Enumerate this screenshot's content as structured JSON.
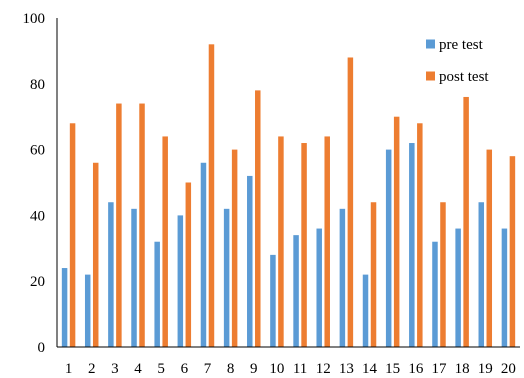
{
  "chart_data": {
    "type": "bar",
    "title": "",
    "xlabel": "",
    "ylabel": "",
    "ylim": [
      0,
      100
    ],
    "yticks": [
      0,
      20,
      40,
      60,
      80,
      100
    ],
    "grid": false,
    "legend_position": "top-right",
    "categories": [
      "1",
      "2",
      "3",
      "4",
      "5",
      "6",
      "7",
      "8",
      "9",
      "10",
      "11",
      "12",
      "13",
      "14",
      "15",
      "16",
      "17",
      "18",
      "19",
      "20"
    ],
    "series": [
      {
        "name": "pre test",
        "color": "#5B9BD5",
        "values": [
          24,
          22,
          44,
          42,
          32,
          40,
          56,
          42,
          52,
          28,
          34,
          36,
          42,
          22,
          60,
          62,
          32,
          36,
          44,
          36
        ]
      },
      {
        "name": "post test",
        "color": "#ED7D31",
        "values": [
          68,
          56,
          74,
          74,
          64,
          50,
          92,
          60,
          78,
          64,
          62,
          64,
          88,
          44,
          70,
          68,
          44,
          76,
          60,
          58
        ]
      }
    ]
  }
}
